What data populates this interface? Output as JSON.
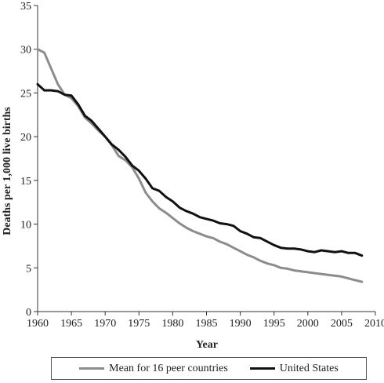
{
  "chart_data": {
    "type": "line",
    "title": "",
    "xlabel": "Year",
    "ylabel": "Deaths per 1,000 live births",
    "xlim": [
      1960,
      2010
    ],
    "ylim": [
      0,
      35
    ],
    "xticks": [
      1960,
      1965,
      1970,
      1975,
      1980,
      1985,
      1990,
      1995,
      2000,
      2005,
      2010
    ],
    "yticks": [
      0,
      5,
      10,
      15,
      20,
      25,
      30,
      35
    ],
    "grid": false,
    "legend_position": "bottom",
    "x": [
      1960,
      1961,
      1962,
      1963,
      1964,
      1965,
      1966,
      1967,
      1968,
      1969,
      1970,
      1971,
      1972,
      1973,
      1974,
      1975,
      1976,
      1977,
      1978,
      1979,
      1980,
      1981,
      1982,
      1983,
      1984,
      1985,
      1986,
      1987,
      1988,
      1989,
      1990,
      1991,
      1992,
      1993,
      1994,
      1995,
      1996,
      1997,
      1998,
      1999,
      2000,
      2001,
      2002,
      2003,
      2004,
      2005,
      2006,
      2007,
      2008
    ],
    "series": [
      {
        "name": "Mean for 16 peer countries",
        "color": "#8c8c8c",
        "values": [
          30.0,
          29.6,
          27.8,
          26.0,
          24.8,
          24.4,
          23.5,
          22.2,
          21.5,
          20.7,
          20.0,
          19.0,
          17.8,
          17.3,
          16.5,
          15.2,
          13.6,
          12.6,
          11.8,
          11.3,
          10.7,
          10.1,
          9.6,
          9.2,
          8.9,
          8.6,
          8.4,
          8.0,
          7.7,
          7.3,
          6.9,
          6.5,
          6.2,
          5.8,
          5.5,
          5.3,
          5.0,
          4.9,
          4.7,
          4.6,
          4.5,
          4.4,
          4.3,
          4.2,
          4.1,
          4.0,
          3.8,
          3.6,
          3.4
        ]
      },
      {
        "name": "United States",
        "color": "#111111",
        "values": [
          26.0,
          25.3,
          25.3,
          25.2,
          24.8,
          24.7,
          23.7,
          22.4,
          21.8,
          20.9,
          20.0,
          19.1,
          18.5,
          17.7,
          16.7,
          16.1,
          15.2,
          14.1,
          13.8,
          13.1,
          12.6,
          11.9,
          11.5,
          11.2,
          10.8,
          10.6,
          10.4,
          10.1,
          10.0,
          9.8,
          9.2,
          8.9,
          8.5,
          8.4,
          8.0,
          7.6,
          7.3,
          7.2,
          7.2,
          7.1,
          6.9,
          6.8,
          7.0,
          6.9,
          6.8,
          6.9,
          6.7,
          6.7,
          6.4
        ]
      }
    ]
  }
}
